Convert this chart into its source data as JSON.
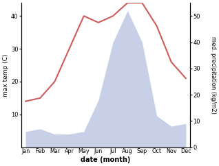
{
  "months": [
    "Jan",
    "Feb",
    "Mar",
    "Apr",
    "May",
    "Jun",
    "Jul",
    "Aug",
    "Sep",
    "Oct",
    "Nov",
    "Dec"
  ],
  "temperature": [
    14,
    15,
    20,
    30,
    40,
    38,
    40,
    44,
    44,
    37,
    26,
    21
  ],
  "precipitation": [
    6,
    7,
    5,
    5,
    6,
    18,
    40,
    52,
    40,
    12,
    8,
    9
  ],
  "temp_color": "#cd5c5c",
  "precip_fill_color": "#c8d0e8",
  "temp_ylim": [
    0,
    44
  ],
  "precip_ylim": [
    0,
    55
  ],
  "temp_yticks": [
    10,
    20,
    30,
    40
  ],
  "precip_yticks": [
    0,
    10,
    20,
    30,
    40,
    50
  ],
  "ylabel_left": "max temp (C)",
  "ylabel_right": "med. precipitation (kg/m2)",
  "xlabel": "date (month)",
  "fig_width": 3.18,
  "fig_height": 2.42,
  "dpi": 100
}
